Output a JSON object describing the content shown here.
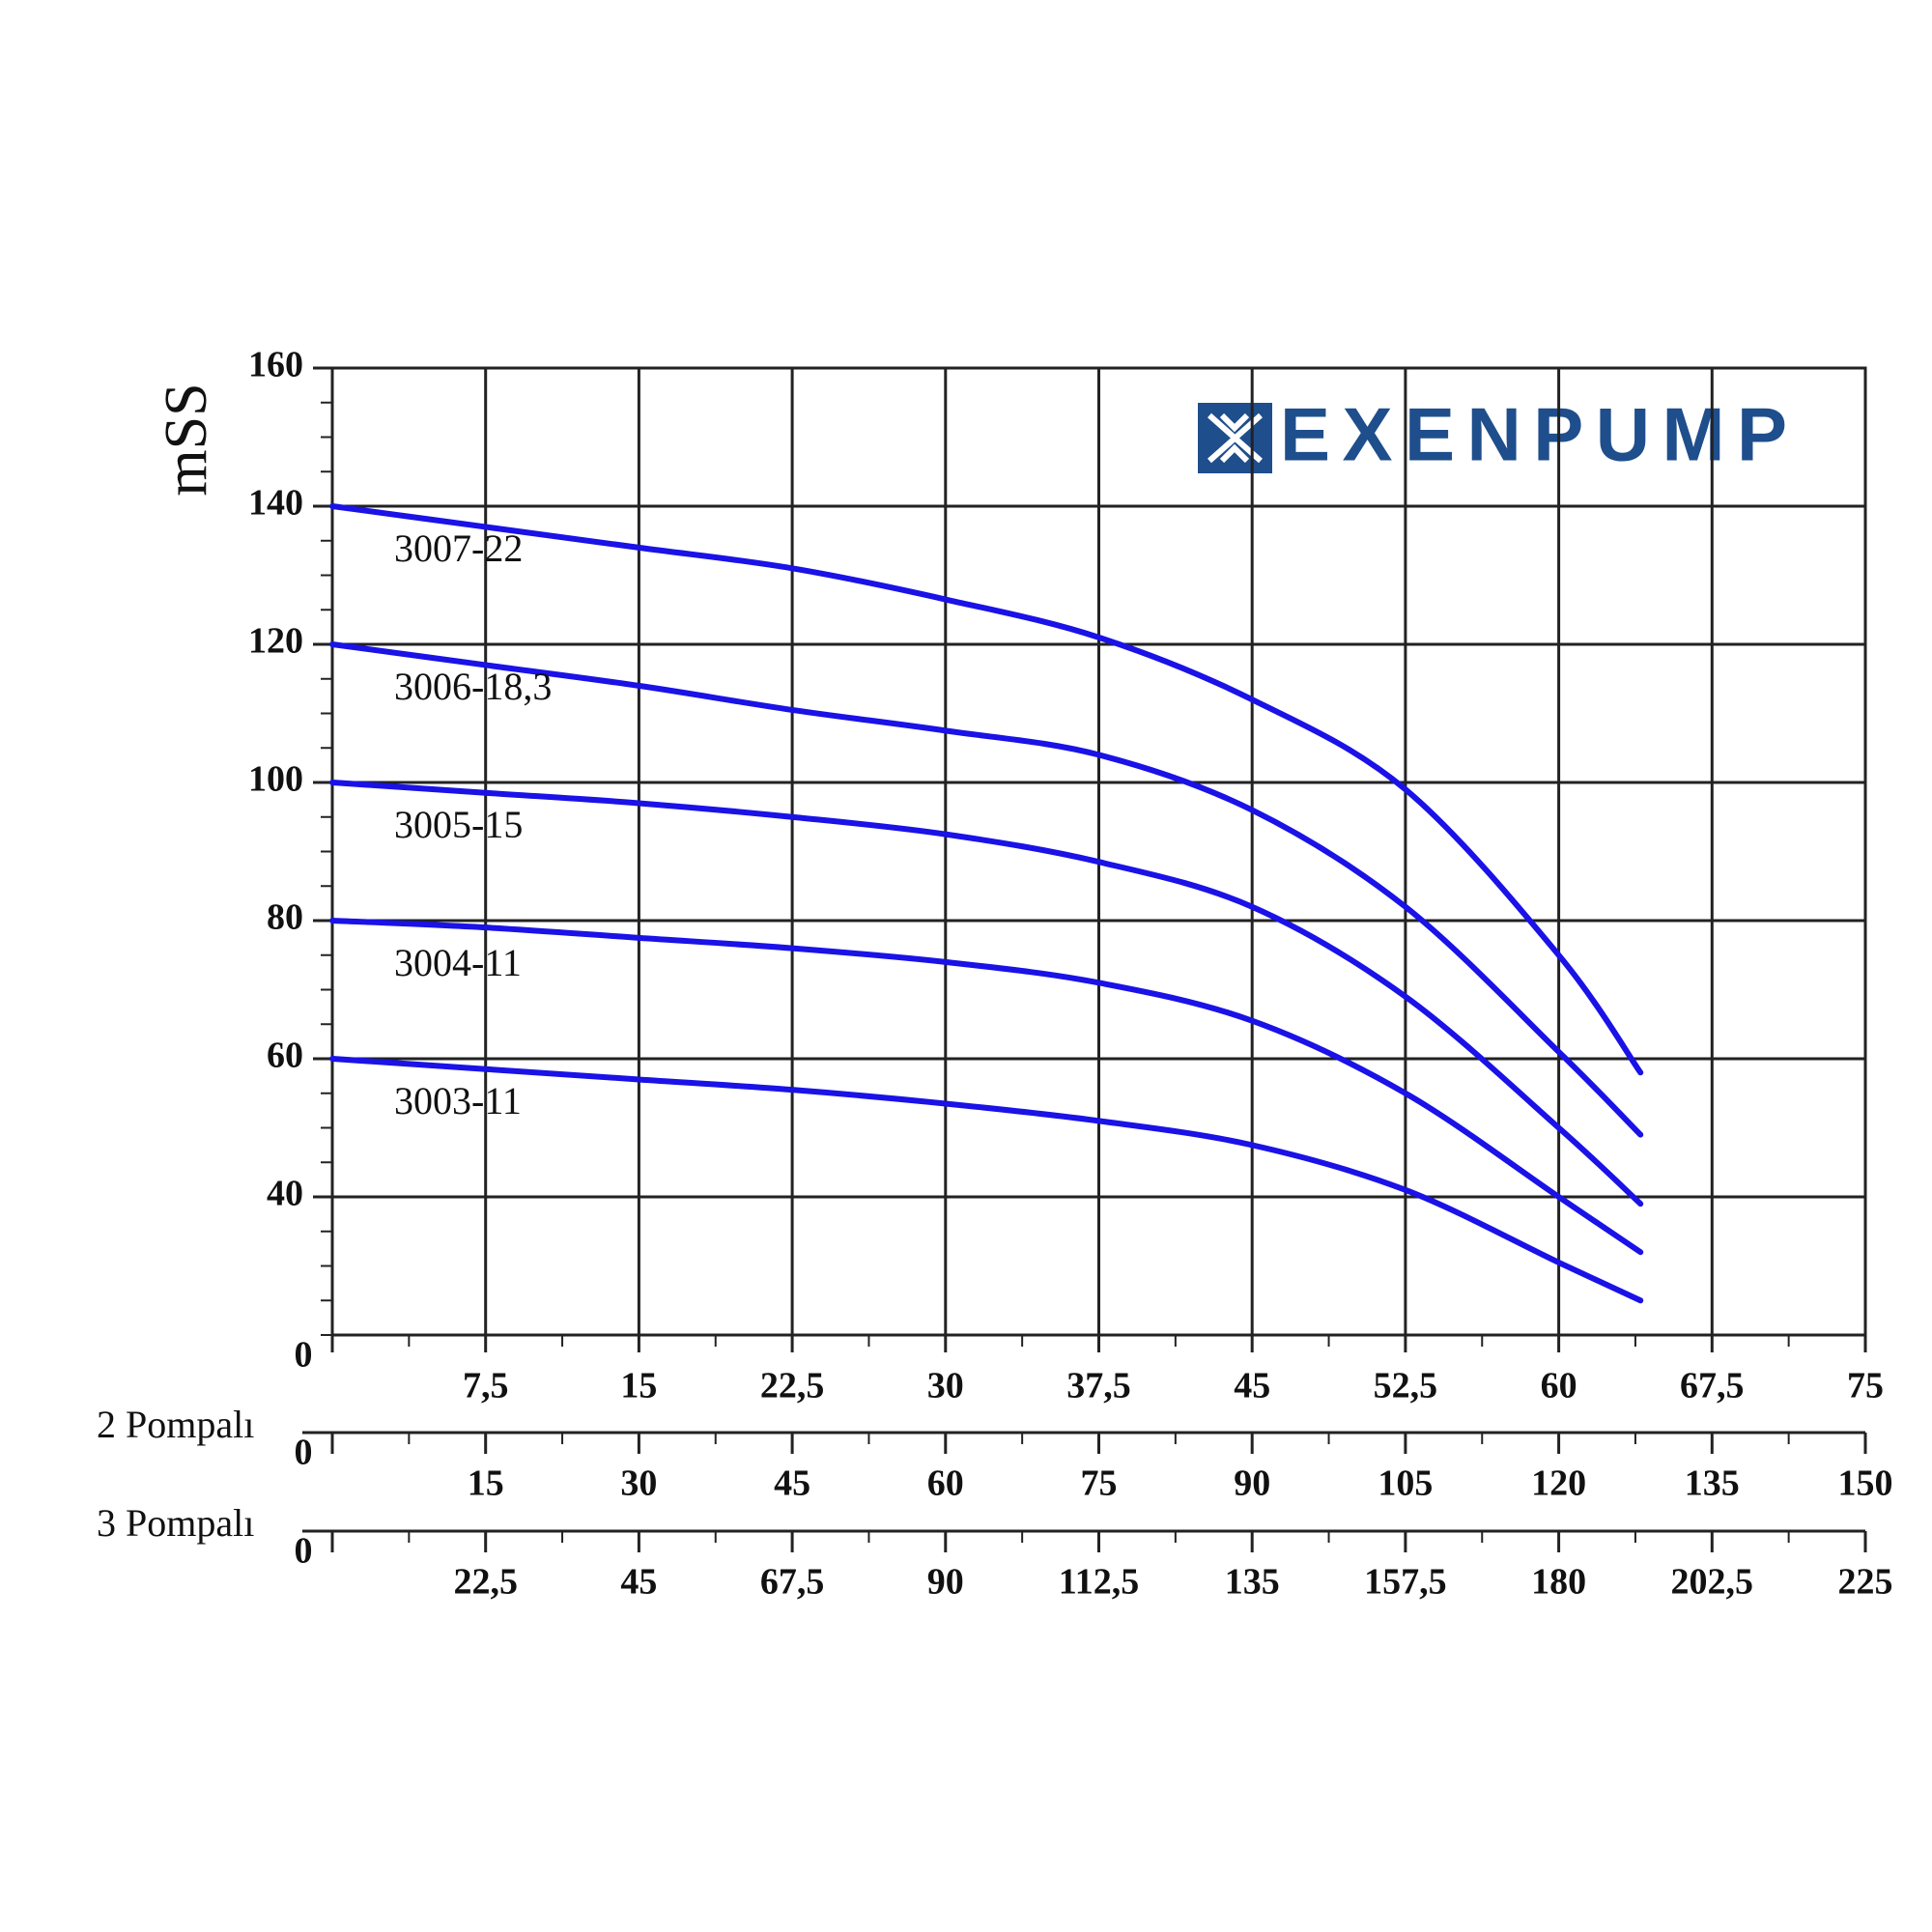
{
  "chart_data": {
    "type": "line",
    "y_label": "mSS",
    "logo": "EXENPUMP",
    "x": [
      0,
      7.5,
      15,
      22.5,
      30,
      37.5,
      45,
      52.5,
      60,
      64
    ],
    "series": [
      {
        "name": "3007-22",
        "color": "#1a12e6",
        "values": [
          140,
          137,
          134,
          131,
          126.5,
          121,
          112,
          99,
          75,
          58
        ]
      },
      {
        "name": "3006-18,3",
        "color": "#1a12e6",
        "values": [
          120,
          117,
          114,
          110.5,
          107.5,
          104,
          96,
          82,
          61,
          49
        ]
      },
      {
        "name": "3005-15",
        "color": "#1a12e6",
        "values": [
          100,
          98.5,
          97,
          95,
          92.5,
          88.5,
          82,
          69,
          50,
          39
        ]
      },
      {
        "name": "3004-11",
        "color": "#1a12e6",
        "values": [
          80,
          79,
          77.5,
          76,
          74,
          71,
          65.5,
          55,
          40,
          32
        ]
      },
      {
        "name": "3003-11",
        "color": "#1a12e6",
        "values": [
          60,
          58.5,
          57,
          55.5,
          53.5,
          51,
          47.5,
          41,
          30.5,
          25
        ]
      }
    ],
    "xlim": [
      0,
      75
    ],
    "xticks": [
      0,
      {
        "value": 7.5,
        "label": "7,5"
      },
      15,
      {
        "value": 22.5,
        "label": "22,5"
      },
      30,
      {
        "value": 37.5,
        "label": "37,5"
      },
      45,
      {
        "value": 52.5,
        "label": "52,5"
      },
      60,
      {
        "value": 67.5,
        "label": "67,5"
      },
      75
    ],
    "ylim": [
      20,
      160
    ],
    "yticks": [
      40,
      60,
      80,
      100,
      120,
      140,
      160
    ],
    "grid": true,
    "secondary_x_axes": [
      {
        "label": "2 Pompalı",
        "xlim": [
          0,
          150
        ],
        "xticks": [
          0,
          15,
          30,
          45,
          60,
          75,
          90,
          105,
          120,
          135,
          150
        ]
      },
      {
        "label": "3 Pompalı",
        "xlim": [
          0,
          225
        ],
        "xticks": [
          0,
          {
            "value": 22.5,
            "label": "22,5"
          },
          45,
          {
            "value": 67.5,
            "label": "67,5"
          },
          90,
          {
            "value": 112.5,
            "label": "112,5"
          },
          135,
          {
            "value": 157.5,
            "label": "157,5"
          },
          180,
          {
            "value": 202.5,
            "label": "202,5"
          },
          225
        ]
      }
    ]
  }
}
